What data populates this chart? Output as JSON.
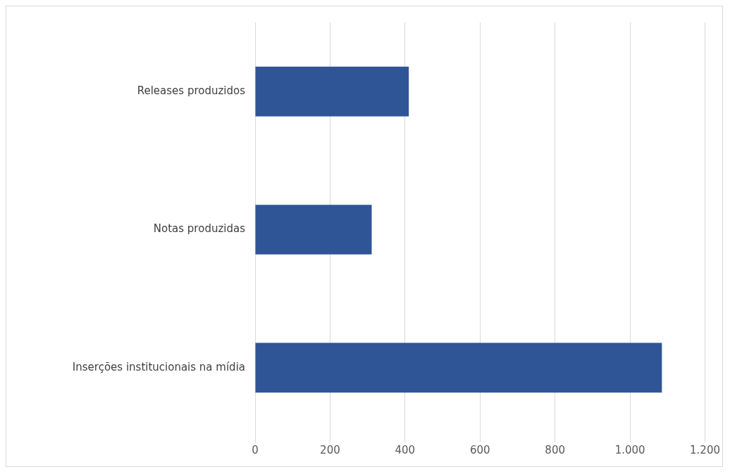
{
  "chart_data": {
    "type": "bar",
    "orientation": "horizontal",
    "categories": [
      "Releases produzidos",
      "Notas produzidas",
      "Inserções institucionais na mídia"
    ],
    "values": [
      410,
      311,
      1085
    ],
    "color": "#2f5597",
    "xlim": [
      0,
      1200
    ],
    "xticks": [
      0,
      200,
      400,
      600,
      800,
      {
        "value": 1000,
        "label": "1.000"
      },
      {
        "value": 1200,
        "label": "1.200"
      }
    ],
    "grid": "x",
    "legend": false
  }
}
